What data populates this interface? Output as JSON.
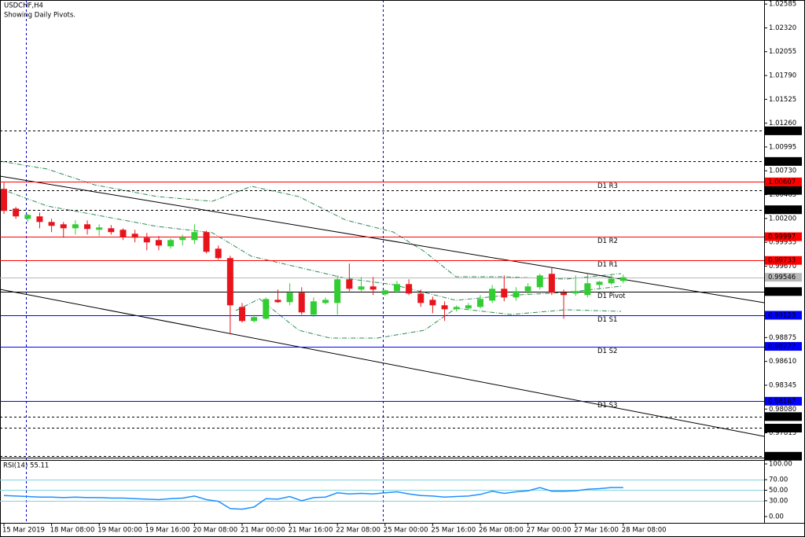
{
  "chart_data": [
    {
      "type": "candlestick",
      "title": "USDCHF,H4",
      "subtitle": "Showing Daily Pivots.",
      "categories": [
        "15 Mar 2019",
        null,
        null,
        null,
        "18 Mar 08:00",
        null,
        null,
        null,
        "19 Mar 00:00",
        null,
        null,
        null,
        "19 Mar 16:00",
        null,
        null,
        null,
        "20 Mar 08:00",
        null,
        null,
        null,
        "21 Mar 00:00",
        null,
        null,
        null,
        "21 Mar 16:00",
        null,
        null,
        null,
        "22 Mar 08:00",
        null,
        null,
        null,
        "25 Mar 00:00",
        null,
        null,
        null,
        "25 Mar 16:00",
        null,
        null,
        null,
        "26 Mar 08:00",
        null,
        null,
        null,
        "27 Mar 00:00",
        null,
        null,
        null,
        "27 Mar 16:00",
        null,
        null,
        null,
        "28 Mar 08:00"
      ],
      "open": [
        1.00529,
        1.0031,
        1.00196,
        1.00223,
        1.00161,
        1.00135,
        1.00091,
        1.00135,
        1.00074,
        1.00091,
        1.00074,
        1.0003,
        0.99986,
        0.9996,
        0.9989,
        0.9996,
        0.9996,
        1.00048,
        0.99864,
        0.99759,
        0.99216,
        0.99059,
        0.99085,
        0.99295,
        0.99269,
        0.99374,
        0.99129,
        0.9926,
        0.9926,
        0.99523,
        0.99409,
        0.99444,
        0.99356,
        0.99391,
        0.9947,
        0.99365,
        0.99295,
        0.99234,
        0.9919,
        0.99199,
        0.99216,
        0.99286,
        0.99418,
        0.99321,
        0.99391,
        0.99435,
        0.99584,
        0.99374,
        0.99365,
        0.99348,
        0.99461,
        0.99479,
        0.99505
      ],
      "high": [
        1.00599,
        1.00328,
        1.00249,
        1.00266,
        1.00196,
        1.00161,
        1.00179,
        1.00179,
        1.00135,
        1.00126,
        1.00091,
        1.00074,
        1.00039,
        1.00004,
        0.99978,
        1.00021,
        1.00135,
        1.00065,
        0.99899,
        0.99785,
        0.9926,
        0.99129,
        0.99321,
        0.99409,
        0.99479,
        0.99435,
        0.99321,
        0.99321,
        0.99566,
        0.99698,
        0.99549,
        0.99549,
        0.99409,
        0.99505,
        0.99523,
        0.99409,
        0.9933,
        0.99278,
        0.99234,
        0.9926,
        0.99348,
        0.99461,
        0.99566,
        0.99435,
        0.99479,
        0.99584,
        0.99654,
        0.99409,
        0.99566,
        0.99584,
        0.99505,
        0.99566,
        0.99575
      ],
      "low": [
        1.00249,
        1.00196,
        1.00161,
        1.00091,
        1.00048,
        0.99986,
        1.00021,
        1.00021,
        1.00004,
        1.00021,
        0.9996,
        0.99934,
        0.99846,
        0.99846,
        0.99864,
        0.99899,
        0.99916,
        0.99811,
        0.99741,
        0.9891,
        0.99041,
        0.99041,
        0.99076,
        0.9926,
        0.99234,
        0.99129,
        0.99103,
        0.99243,
        0.99129,
        0.99391,
        0.99391,
        0.99348,
        0.99339,
        0.99374,
        0.99348,
        0.99216,
        0.99146,
        0.99059,
        0.99164,
        0.99181,
        0.99199,
        0.9926,
        0.99278,
        0.99286,
        0.99348,
        0.99409,
        0.99348,
        0.99085,
        0.99339,
        0.99321,
        0.99409,
        0.99461,
        0.99479
      ],
      "close": [
        1.00284,
        1.00223,
        1.0024,
        1.00161,
        1.00118,
        1.00091,
        1.00135,
        1.00083,
        1.001,
        1.00048,
        0.99995,
        0.99986,
        0.99934,
        0.99899,
        0.9996,
        0.99986,
        1.00048,
        0.99829,
        0.99759,
        0.99234,
        0.99059,
        0.99103,
        0.99304,
        0.99269,
        0.99374,
        0.99155,
        0.99278,
        0.99295,
        0.99523,
        0.99418,
        0.99444,
        0.99409,
        0.994,
        0.9947,
        0.99365,
        0.9926,
        0.99234,
        0.9919,
        0.99216,
        0.99234,
        0.99304,
        0.99418,
        0.99321,
        0.99391,
        0.99444,
        0.99566,
        0.99374,
        0.99348,
        0.99391,
        0.99479,
        0.99496,
        0.99531,
        0.99546
      ],
      "up_color": "#32cd32",
      "down_color": "#e8141c",
      "ylim": [
        0.9754,
        1.0263
      ],
      "yticks": [
        1.02585,
        {
          "value": 1.0232,
          "label": "1.02320"
        },
        1.02055,
        {
          "value": 1.0179,
          "label": "1.01790"
        },
        1.01525,
        {
          "value": 1.0126,
          "label": "1.01260"
        },
        1.00995,
        {
          "value": 1.0073,
          "label": "1.00730"
        },
        1.00465,
        {
          "value": 1.002,
          "label": "1.00200"
        },
        0.99935,
        {
          "value": 0.9967,
          "label": "0.99670"
        },
        0.98875,
        {
          "value": 0.9861,
          "label": "0.98610"
        },
        0.98345,
        {
          "value": 0.9808,
          "label": "0.98080"
        },
        0.97815
      ],
      "price_lines": [
        1.01175,
        1.00834,
        1.00512,
        1.00297,
        0.97996,
        0.97868,
        0.97555
      ],
      "pivots": [
        {
          "name": "D1 R3",
          "value": 1.00607,
          "color": "#ff0000"
        },
        {
          "name": "D1 R2",
          "value": 0.99997,
          "color": "#ff0000"
        },
        {
          "name": "D1 R1",
          "value": 0.99733,
          "color": "#ff0000"
        },
        {
          "name": "D1 Pivot",
          "value": 0.99387,
          "color": "#000000"
        },
        {
          "name": "D1 S1",
          "value": 0.99123,
          "color": "#0000ff"
        },
        {
          "name": "D1 S2",
          "value": 0.98777,
          "color": "#0000ff"
        },
        {
          "name": "D1 S3",
          "value": 0.98167,
          "color": "#0000ff"
        }
      ],
      "current_price": {
        "value": 0.99546,
        "color": "#b8b8b8"
      }
    },
    {
      "type": "line",
      "title": "RSI(14) 55.11",
      "values": [
        40,
        39,
        38,
        37,
        37,
        36,
        37,
        36,
        36,
        35,
        35,
        34,
        33,
        32,
        34,
        35,
        39,
        32,
        29,
        15,
        14,
        18,
        34,
        33,
        38,
        30,
        36,
        37,
        45,
        43,
        44,
        43,
        45,
        47,
        43,
        40,
        39,
        37,
        38,
        39,
        42,
        48,
        44,
        47,
        49,
        55,
        48,
        48,
        49,
        52,
        53,
        55,
        55.11
      ],
      "color": "#1e90ff",
      "ylim": [
        -12,
        107.5
      ],
      "yticks": [
        {
          "value": 100,
          "label": "100.00"
        },
        {
          "value": 70,
          "label": "70.00"
        },
        {
          "value": 50,
          "label": "50.00"
        },
        {
          "value": 30,
          "label": "30.00"
        },
        {
          "value": 0,
          "label": "0.00"
        }
      ],
      "levels": [
        70,
        50,
        30
      ],
      "level_color": "#7fd4e0"
    }
  ]
}
